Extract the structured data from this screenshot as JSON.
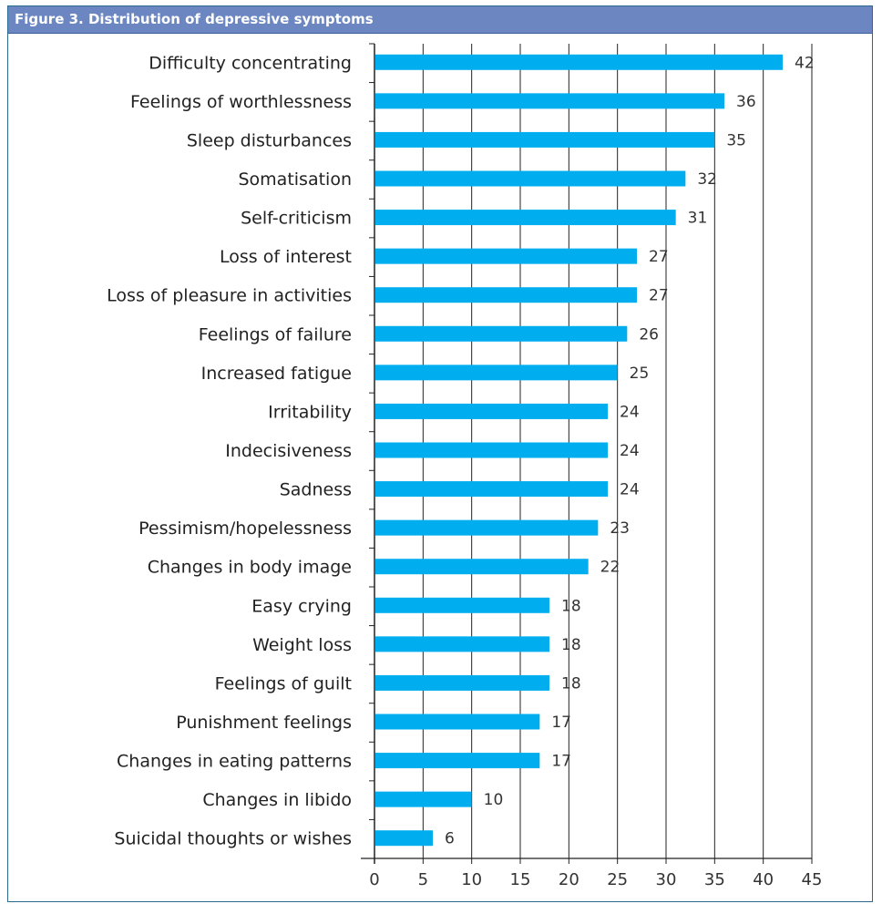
{
  "chart_data": {
    "type": "bar",
    "orientation": "horizontal",
    "title": "Figure 3.  Distribution of depressive symptoms",
    "xlabel": "",
    "ylabel": "",
    "xlim": [
      0,
      45
    ],
    "xticks": [
      0,
      5,
      10,
      15,
      20,
      25,
      30,
      35,
      40,
      45
    ],
    "grid": "vertical",
    "bar_color": "#00aeef",
    "header_color": "#6b86c1",
    "categories": [
      "Difficulty concentrating",
      "Feelings of worthlessness",
      "Sleep disturbances",
      "Somatisation",
      "Self-criticism",
      "Loss of interest",
      "Loss of pleasure in activities",
      "Feelings of failure",
      "Increased fatigue",
      "Irritability",
      "Indecisiveness",
      "Sadness",
      "Pessimism/hopelessness",
      "Changes in body image",
      "Easy crying",
      "Weight loss",
      "Feelings of guilt",
      "Punishment feelings",
      "Changes in eating patterns",
      "Changes in libido",
      "Suicidal thoughts or wishes"
    ],
    "values": [
      42,
      36,
      35,
      32,
      31,
      27,
      27,
      26,
      25,
      24,
      24,
      24,
      23,
      22,
      18,
      18,
      18,
      17,
      17,
      10,
      6
    ]
  }
}
